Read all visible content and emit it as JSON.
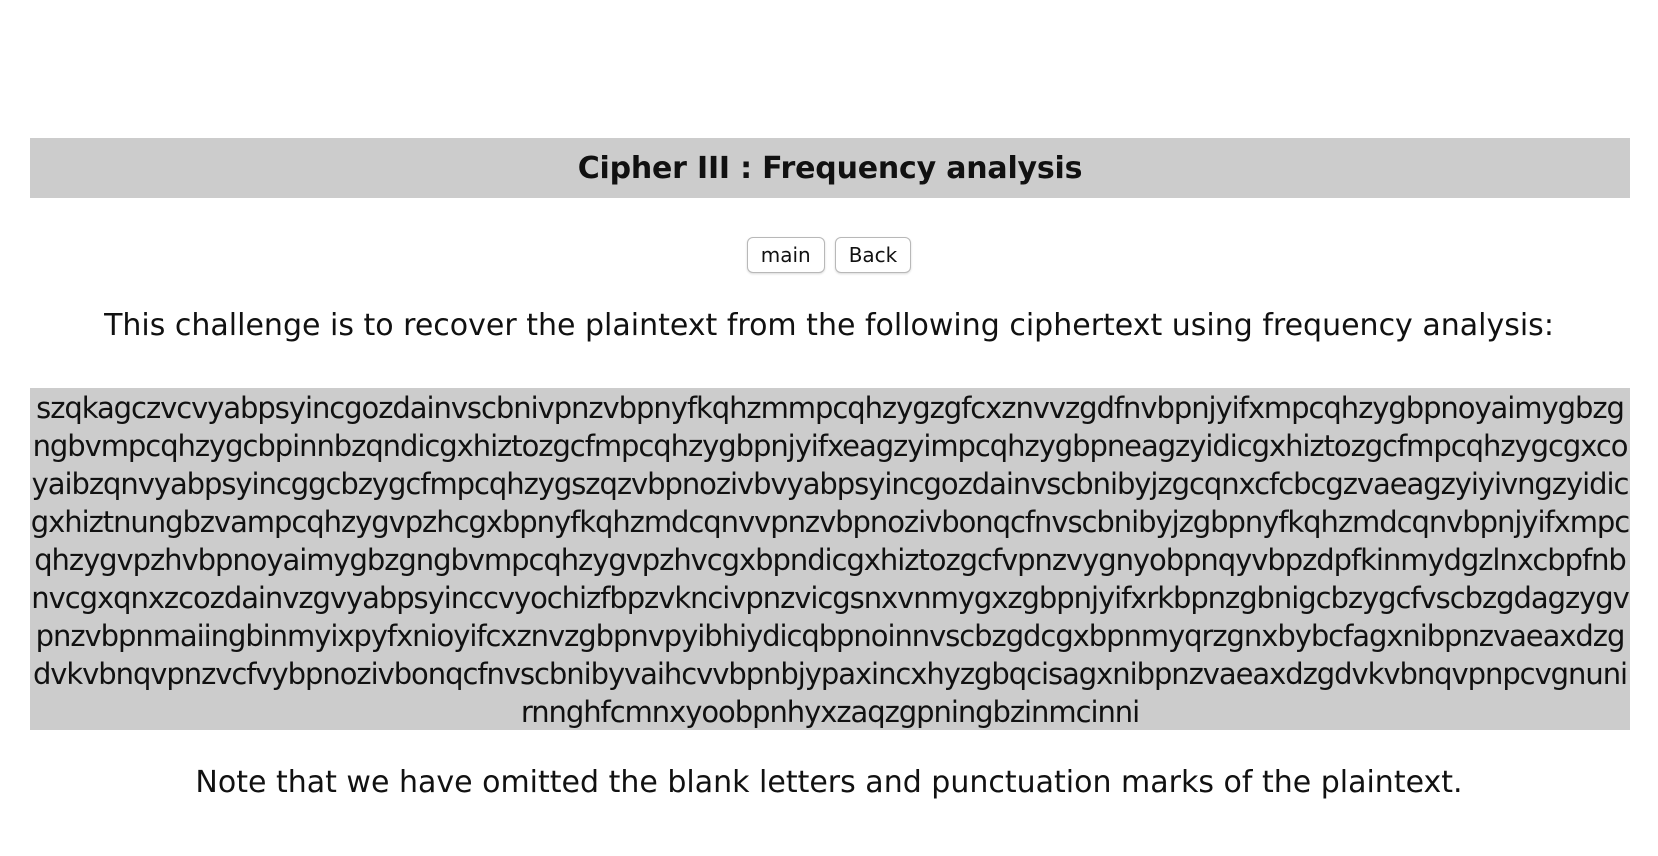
{
  "header": {
    "title": "Cipher III : Frequency analysis"
  },
  "nav": {
    "main_label": "main",
    "back_label": "Back"
  },
  "content": {
    "intro": "This challenge is to recover the plaintext from the following ciphertext using frequency analysis:",
    "ciphertext": "szqkagczvcvyabpsyincgozdainvscbnivpnzvbpnyfkqhzmmpcqhzygzgfcxznvvzgdfnvbpnjyifxmpcqhzygbpnoyaimygbzgngbvmpcqhzygcbpinnbzqndicgxhiztozgcfmpcqhzygbpnjyifxeagzyimpcqhzygbpneagzyidicgxhiztozgcfmpcqhzygcgxcoyaibzqnvyabpsyincggcbzygcfmpcqhzygszqzvbpnozivbvyabpsyincgozdainvscbnibyjzgcqnxcfcbcgzvaeagzyiyivngzyidicgxhiztnungbzvampcqhzygvpzhcgxbpnyfkqhzmdcqnvvpnzvbpnozivbonqcfnvscbnibyjzgbpnyfkqhzmdcqnvbpnjyifxmpcqhzygvpzhvbpnoyaimygbzgngbvmpcqhzygvpzhvcgxbpndicgxhiztozgcfvpnzvygnyobpnqyvbpzdpfkinmydgzlnxcbpfnbnvcgxqnxzcozdainvzgvyabpsyinccvyochizfbpzvkncivpnzvicgsnxvnmygxzgbpnjyifxrkbpnzgbnigcbzygcfvscbzgdagzygvpnzvbpnmaiingbinmyixpyfxnioyifcxznvzgbpnvpyibhiydicqbpnoinnvscbzgdcgxbpnmyqrzgnxbybcfagxnibpnzvaeaxdzgdvkvbnqvpnzvcfvybpnozivbonqcfnvscbnibyvaihcvvbpnbjypaxincxhyzgbqcisagxnibpnzvaeaxdzgdvkvbnqvpnpcvgnunirnnghfcmnxyoobpnhyxzaqzgpningbzinmcinni",
    "note": "Note that we have omitted the blank letters and punctuation marks of the plaintext."
  },
  "colors": {
    "panel_background": "#cccccc",
    "page_background": "#ffffff",
    "text": "#111111"
  }
}
